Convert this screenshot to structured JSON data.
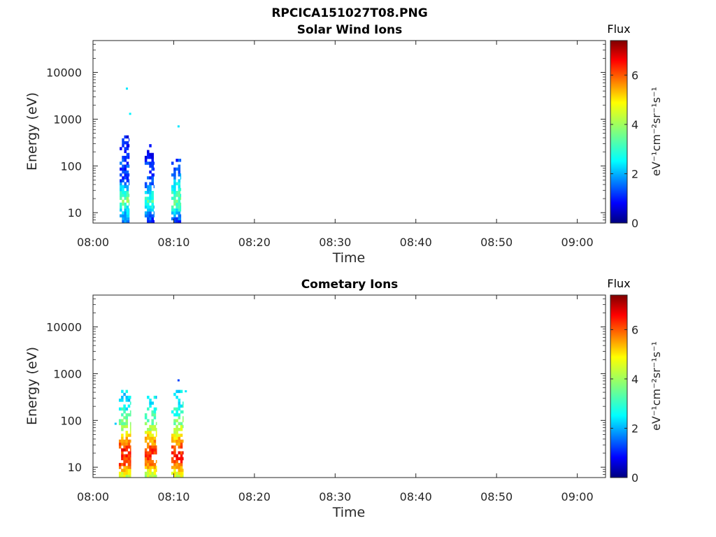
{
  "figure": {
    "title": "RPCICA151027T08.PNG"
  },
  "colormap": {
    "name": "jet",
    "stops": [
      "#00007f",
      "#0000ff",
      "#007fff",
      "#00ffff",
      "#7fff7f",
      "#ffff00",
      "#ff7f00",
      "#ff0000",
      "#7f0000"
    ]
  },
  "chart_data": [
    {
      "type": "heatmap",
      "title": "Solar Wind Ions",
      "xlabel": "Time",
      "ylabel": "Energy (eV)",
      "x_ticks": [
        "08:00",
        "08:10",
        "08:20",
        "08:30",
        "08:40",
        "08:50",
        "09:00"
      ],
      "x_range_minutes": [
        0,
        63.5
      ],
      "y_scale": "log",
      "y_ticks": [
        "10",
        "100",
        "1000",
        "10000"
      ],
      "y_range": [
        6,
        48000
      ],
      "colorbar": {
        "label": "Flux",
        "units": "eV⁻¹cm⁻²sr⁻¹s⁻¹",
        "ticks": [
          "0",
          "2",
          "4",
          "6"
        ],
        "range": [
          0,
          7.4
        ]
      },
      "bursts": [
        {
          "start_min": 3.3,
          "end_min": 4.5,
          "cells": [
            [
              6,
              1.8
            ],
            [
              12,
              2.6
            ],
            [
              18,
              4.0
            ],
            [
              30,
              2.8
            ],
            [
              45,
              1.6
            ],
            [
              70,
              1.2
            ],
            [
              110,
              1.4
            ],
            [
              180,
              1.1
            ],
            [
              250,
              1.0
            ],
            [
              480,
              0.9
            ]
          ]
        },
        {
          "start_min": 6.4,
          "end_min": 7.6,
          "cells": [
            [
              6,
              1.0
            ],
            [
              12,
              2.5
            ],
            [
              18,
              3.2
            ],
            [
              28,
              2.6
            ],
            [
              45,
              1.4
            ],
            [
              70,
              1.2
            ],
            [
              110,
              1.3
            ],
            [
              170,
              1.0
            ],
            [
              280,
              0.9
            ]
          ]
        },
        {
          "start_min": 9.7,
          "end_min": 10.9,
          "cells": [
            [
              6,
              1.0
            ],
            [
              12,
              3.0
            ],
            [
              18,
              3.6
            ],
            [
              30,
              3.0
            ],
            [
              45,
              2.6
            ],
            [
              70,
              1.8
            ],
            [
              110,
              1.6
            ],
            [
              150,
              1.2
            ]
          ]
        }
      ],
      "points": [
        {
          "time_min": 4.2,
          "energy": 4500,
          "flux": 2.6
        },
        {
          "time_min": 4.6,
          "energy": 1300,
          "flux": 2.7
        },
        {
          "time_min": 10.6,
          "energy": 700,
          "flux": 2.6
        }
      ]
    },
    {
      "type": "heatmap",
      "title": "Cometary Ions",
      "xlabel": "Time",
      "ylabel": "Energy (eV)",
      "x_ticks": [
        "08:00",
        "08:10",
        "08:20",
        "08:30",
        "08:40",
        "08:50",
        "09:00"
      ],
      "x_range_minutes": [
        0,
        63.5
      ],
      "y_scale": "log",
      "y_ticks": [
        "10",
        "100",
        "1000",
        "10000"
      ],
      "y_range": [
        6,
        48000
      ],
      "colorbar": {
        "label": "Flux",
        "units": "eV⁻¹cm⁻²sr⁻¹s⁻¹",
        "ticks": [
          "0",
          "2",
          "4",
          "6"
        ],
        "range": [
          0,
          7.4
        ]
      },
      "bursts": [
        {
          "start_min": 3.2,
          "end_min": 4.7,
          "cells": [
            [
              6,
              4.2
            ],
            [
              9,
              5.0
            ],
            [
              12,
              6.2
            ],
            [
              16,
              6.0
            ],
            [
              22,
              6.4
            ],
            [
              30,
              5.8
            ],
            [
              42,
              5.2
            ],
            [
              60,
              4.3
            ],
            [
              85,
              3.8
            ],
            [
              120,
              3.3
            ],
            [
              170,
              2.9
            ],
            [
              240,
              2.7
            ],
            [
              340,
              2.6
            ],
            [
              480,
              2.5
            ]
          ]
        },
        {
          "start_min": 6.4,
          "end_min": 7.9,
          "cells": [
            [
              6,
              4.0
            ],
            [
              9,
              4.8
            ],
            [
              12,
              5.6
            ],
            [
              16,
              6.0
            ],
            [
              22,
              6.2
            ],
            [
              30,
              5.6
            ],
            [
              42,
              5.2
            ],
            [
              60,
              4.2
            ],
            [
              85,
              3.6
            ],
            [
              120,
              3.2
            ],
            [
              170,
              2.8
            ],
            [
              240,
              2.7
            ],
            [
              340,
              2.6
            ]
          ]
        },
        {
          "start_min": 9.7,
          "end_min": 11.2,
          "cells": [
            [
              6,
              4.2
            ],
            [
              9,
              5.0
            ],
            [
              12,
              5.8
            ],
            [
              16,
              6.4
            ],
            [
              22,
              6.2
            ],
            [
              30,
              5.6
            ],
            [
              42,
              5.0
            ],
            [
              60,
              4.3
            ],
            [
              85,
              3.8
            ],
            [
              120,
              3.3
            ],
            [
              170,
              3.0
            ],
            [
              240,
              2.8
            ],
            [
              340,
              2.6
            ],
            [
              480,
              2.5
            ]
          ]
        }
      ],
      "points": [
        {
          "time_min": 10.6,
          "energy": 720,
          "flux": 1.4
        },
        {
          "time_min": 11.5,
          "energy": 420,
          "flux": 2.6
        },
        {
          "time_min": 2.8,
          "energy": 85,
          "flux": 2.4
        }
      ]
    }
  ]
}
